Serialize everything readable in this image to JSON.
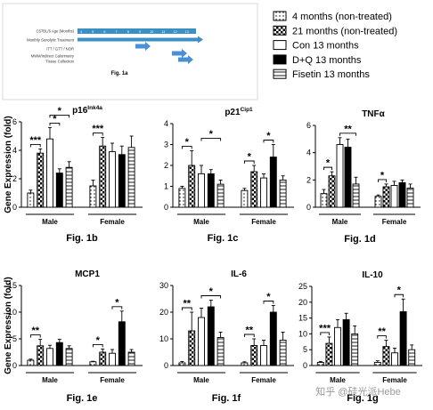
{
  "fig1a": {
    "title": "Fig. 1a",
    "rows": [
      "C57BL/6 Age (Months)",
      "Monthly Senolytic Treatment",
      "ITT / GTT / NOR",
      "MWM/Indirect Calorimetry",
      "Tissue Collection"
    ],
    "ages": [
      "4",
      "5",
      "6",
      "7",
      "8",
      "9",
      "10",
      "11",
      "12",
      "13"
    ],
    "colors": {
      "bar": "#3a8fc5",
      "arrow": "#4a90d9"
    }
  },
  "legend": [
    {
      "label": "4 months (non-treated)",
      "pattern": "dots"
    },
    {
      "label": "21 months (non-treated)",
      "pattern": "checker"
    },
    {
      "label": "Con 13 months",
      "pattern": "white"
    },
    {
      "label": "D+Q 13 months",
      "pattern": "black"
    },
    {
      "label": "Fisetin 13 months",
      "pattern": "hlines"
    }
  ],
  "shared": {
    "ylabel": "Gene Expression (fold)",
    "group1": "Male",
    "group2": "Female",
    "sig": {
      "one": "*",
      "two": "**",
      "three": "***"
    }
  },
  "chart_data": [
    {
      "type": "bar",
      "fig": "Fig. 1b",
      "title": "p16",
      "title_sup": "Ink4a",
      "ylim": [
        0,
        6
      ],
      "yticks": [
        0,
        2,
        4,
        6
      ],
      "ylabel": "Gene Expression (fold)",
      "groups": [
        "Male",
        "Female"
      ],
      "series": [
        {
          "name": "4 months (non-treated)",
          "values": [
            1.0,
            1.5
          ],
          "errors": [
            0.2,
            0.4
          ]
        },
        {
          "name": "21 months (non-treated)",
          "values": [
            3.8,
            4.3
          ],
          "errors": [
            0.3,
            0.6
          ]
        },
        {
          "name": "Con 13 months",
          "values": [
            4.8,
            3.9
          ],
          "errors": [
            0.8,
            0.6
          ]
        },
        {
          "name": "D+Q 13 months",
          "values": [
            2.4,
            3.7
          ],
          "errors": [
            0.3,
            0.6
          ]
        },
        {
          "name": "Fisetin 13 months",
          "values": [
            2.8,
            4.2
          ],
          "errors": [
            0.4,
            0.8
          ]
        }
      ],
      "sig": [
        {
          "from": [
            0,
            0
          ],
          "to": [
            0,
            1
          ],
          "label": "***"
        },
        {
          "from": [
            0,
            2
          ],
          "to": [
            0,
            3
          ],
          "label": "*"
        },
        {
          "from": [
            0,
            2
          ],
          "to": [
            0,
            4
          ],
          "label": "*"
        },
        {
          "from": [
            1,
            0
          ],
          "to": [
            1,
            1
          ],
          "label": "***"
        }
      ]
    },
    {
      "type": "bar",
      "fig": "Fig. 1c",
      "title": "p21",
      "title_sup": "Cip1",
      "ylim": [
        0,
        4
      ],
      "yticks": [
        0,
        1,
        2,
        3,
        4
      ],
      "ylabel": "",
      "groups": [
        "Male",
        "Female"
      ],
      "series": [
        {
          "name": "4 months (non-treated)",
          "values": [
            0.9,
            0.8
          ],
          "errors": [
            0.1,
            0.1
          ]
        },
        {
          "name": "21 months (non-treated)",
          "values": [
            2.0,
            1.7
          ],
          "errors": [
            0.7,
            0.3
          ]
        },
        {
          "name": "Con 13 months",
          "values": [
            1.6,
            1.4
          ],
          "errors": [
            0.4,
            0.2
          ]
        },
        {
          "name": "D+Q 13 months",
          "values": [
            1.6,
            2.4
          ],
          "errors": [
            0.2,
            0.6
          ]
        },
        {
          "name": "Fisetin 13 months",
          "values": [
            1.1,
            1.3
          ],
          "errors": [
            0.2,
            0.2
          ]
        }
      ],
      "sig": [
        {
          "from": [
            0,
            0
          ],
          "to": [
            0,
            1
          ],
          "label": "*"
        },
        {
          "from": [
            0,
            2
          ],
          "to": [
            0,
            4
          ],
          "label": "*"
        },
        {
          "from": [
            1,
            0
          ],
          "to": [
            1,
            1
          ],
          "label": "*"
        },
        {
          "from": [
            1,
            2
          ],
          "to": [
            1,
            3
          ],
          "label": "*"
        }
      ]
    },
    {
      "type": "bar",
      "fig": "Fig. 1d",
      "title": "TNFα",
      "title_sup": "",
      "ylim": [
        0,
        6
      ],
      "yticks": [
        0,
        2,
        4,
        6
      ],
      "ylabel": "",
      "groups": [
        "Male",
        "Female"
      ],
      "series": [
        {
          "name": "4 months (non-treated)",
          "values": [
            1.0,
            0.8
          ],
          "errors": [
            0.3,
            0.1
          ]
        },
        {
          "name": "21 months (non-treated)",
          "values": [
            2.3,
            1.5
          ],
          "errors": [
            0.3,
            0.2
          ]
        },
        {
          "name": "Con 13 months",
          "values": [
            4.6,
            1.6
          ],
          "errors": [
            0.5,
            0.3
          ]
        },
        {
          "name": "D+Q 13 months",
          "values": [
            4.4,
            1.8
          ],
          "errors": [
            0.6,
            0.2
          ]
        },
        {
          "name": "Fisetin 13 months",
          "values": [
            1.7,
            1.4
          ],
          "errors": [
            0.5,
            0.3
          ]
        }
      ],
      "sig": [
        {
          "from": [
            0,
            0
          ],
          "to": [
            0,
            1
          ],
          "label": "*"
        },
        {
          "from": [
            0,
            2
          ],
          "to": [
            0,
            4
          ],
          "label": "**"
        },
        {
          "from": [
            1,
            0
          ],
          "to": [
            1,
            1
          ],
          "label": "*"
        }
      ]
    },
    {
      "type": "bar",
      "fig": "Fig. 1e",
      "title": "MCP1",
      "title_sup": "",
      "ylim": [
        0,
        15
      ],
      "yticks": [
        0,
        5,
        10,
        15
      ],
      "ylabel": "Gene Expression (fold)",
      "groups": [
        "Male",
        "Female"
      ],
      "series": [
        {
          "name": "4 months (non-treated)",
          "values": [
            1.0,
            0.7
          ],
          "errors": [
            0.2,
            0.1
          ]
        },
        {
          "name": "21 months (non-treated)",
          "values": [
            3.7,
            2.5
          ],
          "errors": [
            1.2,
            0.6
          ]
        },
        {
          "name": "Con 13 months",
          "values": [
            3.2,
            2.3
          ],
          "errors": [
            0.6,
            0.7
          ]
        },
        {
          "name": "D+Q 13 months",
          "values": [
            4.3,
            8.2
          ],
          "errors": [
            0.6,
            2.0
          ]
        },
        {
          "name": "Fisetin 13 months",
          "values": [
            3.2,
            2.5
          ],
          "errors": [
            0.5,
            0.5
          ]
        }
      ],
      "sig": [
        {
          "from": [
            0,
            0
          ],
          "to": [
            0,
            1
          ],
          "label": "**"
        },
        {
          "from": [
            1,
            0
          ],
          "to": [
            1,
            1
          ],
          "label": "*"
        },
        {
          "from": [
            1,
            2
          ],
          "to": [
            1,
            3
          ],
          "label": "*"
        }
      ]
    },
    {
      "type": "bar",
      "fig": "Fig. 1f",
      "title": "IL-6",
      "title_sup": "",
      "ylim": [
        0,
        30
      ],
      "yticks": [
        0,
        10,
        20,
        30
      ],
      "ylabel": "",
      "groups": [
        "Male",
        "Female"
      ],
      "series": [
        {
          "name": "4 months (non-treated)",
          "values": [
            1.0,
            1.0
          ],
          "errors": [
            0.5,
            0.4
          ]
        },
        {
          "name": "21 months (non-treated)",
          "values": [
            13.0,
            7.5
          ],
          "errors": [
            7.0,
            2.5
          ]
        },
        {
          "name": "Con 13 months",
          "values": [
            18.0,
            7.5
          ],
          "errors": [
            3.5,
            2.0
          ]
        },
        {
          "name": "D+Q 13 months",
          "values": [
            22.0,
            20.0
          ],
          "errors": [
            2.5,
            2.5
          ]
        },
        {
          "name": "Fisetin 13 months",
          "values": [
            10.5,
            9.5
          ],
          "errors": [
            2.0,
            3.0
          ]
        }
      ],
      "sig": [
        {
          "from": [
            0,
            0
          ],
          "to": [
            0,
            1
          ],
          "label": "**"
        },
        {
          "from": [
            0,
            2
          ],
          "to": [
            0,
            4
          ],
          "label": "*"
        },
        {
          "from": [
            1,
            0
          ],
          "to": [
            1,
            1
          ],
          "label": "**"
        },
        {
          "from": [
            1,
            2
          ],
          "to": [
            1,
            3
          ],
          "label": "*"
        }
      ]
    },
    {
      "type": "bar",
      "fig": "Fig. 1g",
      "title": "IL-10",
      "title_sup": "",
      "ylim": [
        0,
        25
      ],
      "yticks": [
        0,
        5,
        10,
        15,
        20,
        25
      ],
      "ylabel": "",
      "groups": [
        "Male",
        "Female"
      ],
      "series": [
        {
          "name": "4 months (non-treated)",
          "values": [
            1.0,
            1.0
          ],
          "errors": [
            0.3,
            0.5
          ]
        },
        {
          "name": "21 months (non-treated)",
          "values": [
            7.0,
            6.0
          ],
          "errors": [
            2.0,
            2.0
          ]
        },
        {
          "name": "Con 13 months",
          "values": [
            12.0,
            4.0
          ],
          "errors": [
            2.5,
            1.5
          ]
        },
        {
          "name": "D+Q 13 months",
          "values": [
            14.5,
            17.0
          ],
          "errors": [
            2.0,
            4.0
          ]
        },
        {
          "name": "Fisetin 13 months",
          "values": [
            10.0,
            5.0
          ],
          "errors": [
            2.5,
            1.5
          ]
        }
      ],
      "sig": [
        {
          "from": [
            0,
            0
          ],
          "to": [
            0,
            1
          ],
          "label": "***"
        },
        {
          "from": [
            1,
            0
          ],
          "to": [
            1,
            1
          ],
          "label": "**"
        },
        {
          "from": [
            1,
            2
          ],
          "to": [
            1,
            3
          ],
          "label": "*"
        }
      ]
    }
  ],
  "watermark": "知乎 @硅光派Hebe"
}
